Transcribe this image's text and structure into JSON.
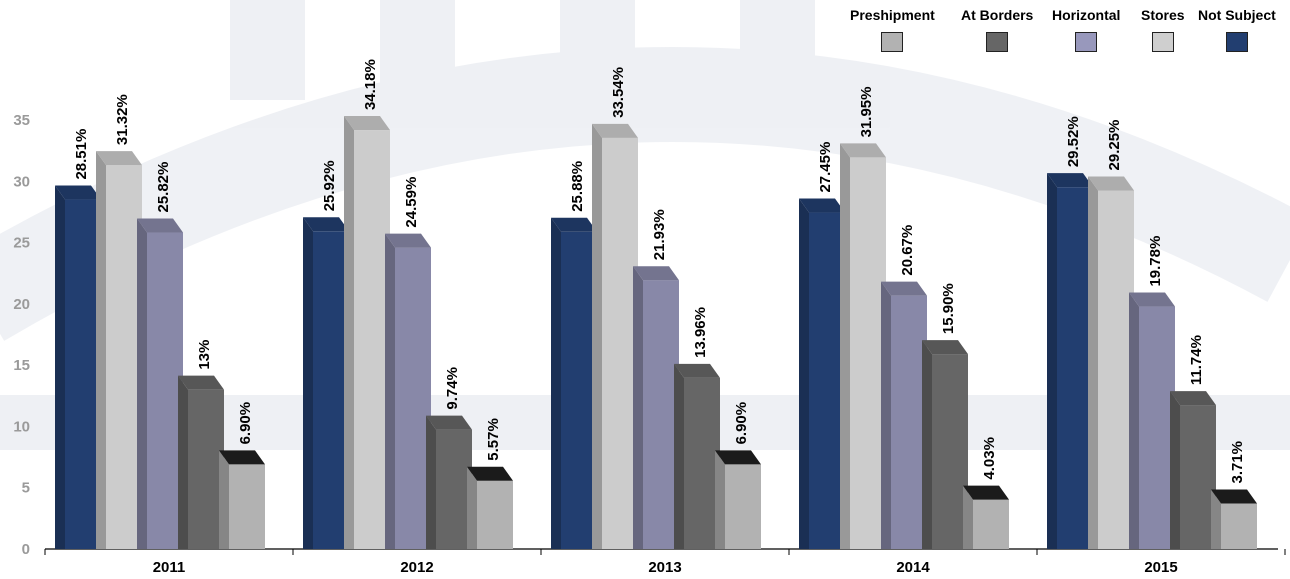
{
  "chart_data": {
    "type": "bar",
    "title": "",
    "xlabel": "",
    "ylabel": "",
    "ylim": [
      0,
      35
    ],
    "yticks": [
      "0",
      "5",
      "10",
      "15",
      "20",
      "25",
      "30",
      "35"
    ],
    "categories": [
      "2011",
      "2012",
      "2013",
      "2014",
      "2015"
    ],
    "legend_position": "top-right",
    "legend": [
      {
        "name": "Preshipment",
        "color": "#b2b2b2"
      },
      {
        "name": "At Borders",
        "color": "#666666"
      },
      {
        "name": "Horizontal",
        "color": "#9898bc"
      },
      {
        "name": "Stores",
        "color": "#cfcfcf"
      },
      {
        "name": "Not Subject",
        "color": "#223e70"
      }
    ],
    "bars": [
      [
        {
          "value": 28.51,
          "label": "28.51%",
          "color": "#223e70"
        },
        {
          "value": 31.32,
          "label": "31.32%",
          "color": "#cccccc"
        },
        {
          "value": 25.82,
          "label": "25.82%",
          "color": "#8888a8"
        },
        {
          "value": 13,
          "label": "13%",
          "color": "#666666"
        },
        {
          "value": 6.9,
          "label": "6.90%",
          "color": "#b2b2b2"
        }
      ],
      [
        {
          "value": 25.92,
          "label": "25.92%",
          "color": "#223e70"
        },
        {
          "value": 34.18,
          "label": "34.18%",
          "color": "#cccccc"
        },
        {
          "value": 24.59,
          "label": "24.59%",
          "color": "#8888a8"
        },
        {
          "value": 9.74,
          "label": "9.74%",
          "color": "#666666"
        },
        {
          "value": 5.57,
          "label": "5.57%",
          "color": "#b2b2b2"
        }
      ],
      [
        {
          "value": 25.88,
          "label": "25.88%",
          "color": "#223e70"
        },
        {
          "value": 33.54,
          "label": "33.54%",
          "color": "#cccccc"
        },
        {
          "value": 21.93,
          "label": "21.93%",
          "color": "#8888a8"
        },
        {
          "value": 13.96,
          "label": "13.96%",
          "color": "#666666"
        },
        {
          "value": 6.9,
          "label": "6.90%",
          "color": "#b2b2b2"
        }
      ],
      [
        {
          "value": 27.45,
          "label": "27.45%",
          "color": "#223e70"
        },
        {
          "value": 31.95,
          "label": "31.95%",
          "color": "#cccccc"
        },
        {
          "value": 20.67,
          "label": "20.67%",
          "color": "#8888a8"
        },
        {
          "value": 15.9,
          "label": "15.90%",
          "color": "#666666"
        },
        {
          "value": 4.03,
          "label": "4.03%",
          "color": "#b2b2b2"
        }
      ],
      [
        {
          "value": 29.52,
          "label": "29.52%",
          "color": "#223e70"
        },
        {
          "value": 29.25,
          "label": "29.25%",
          "color": "#cccccc"
        },
        {
          "value": 19.78,
          "label": "19.78%",
          "color": "#8888a8"
        },
        {
          "value": 11.74,
          "label": "11.74%",
          "color": "#666666"
        },
        {
          "value": 3.71,
          "label": "3.71%",
          "color": "#b2b2b2"
        }
      ]
    ]
  }
}
